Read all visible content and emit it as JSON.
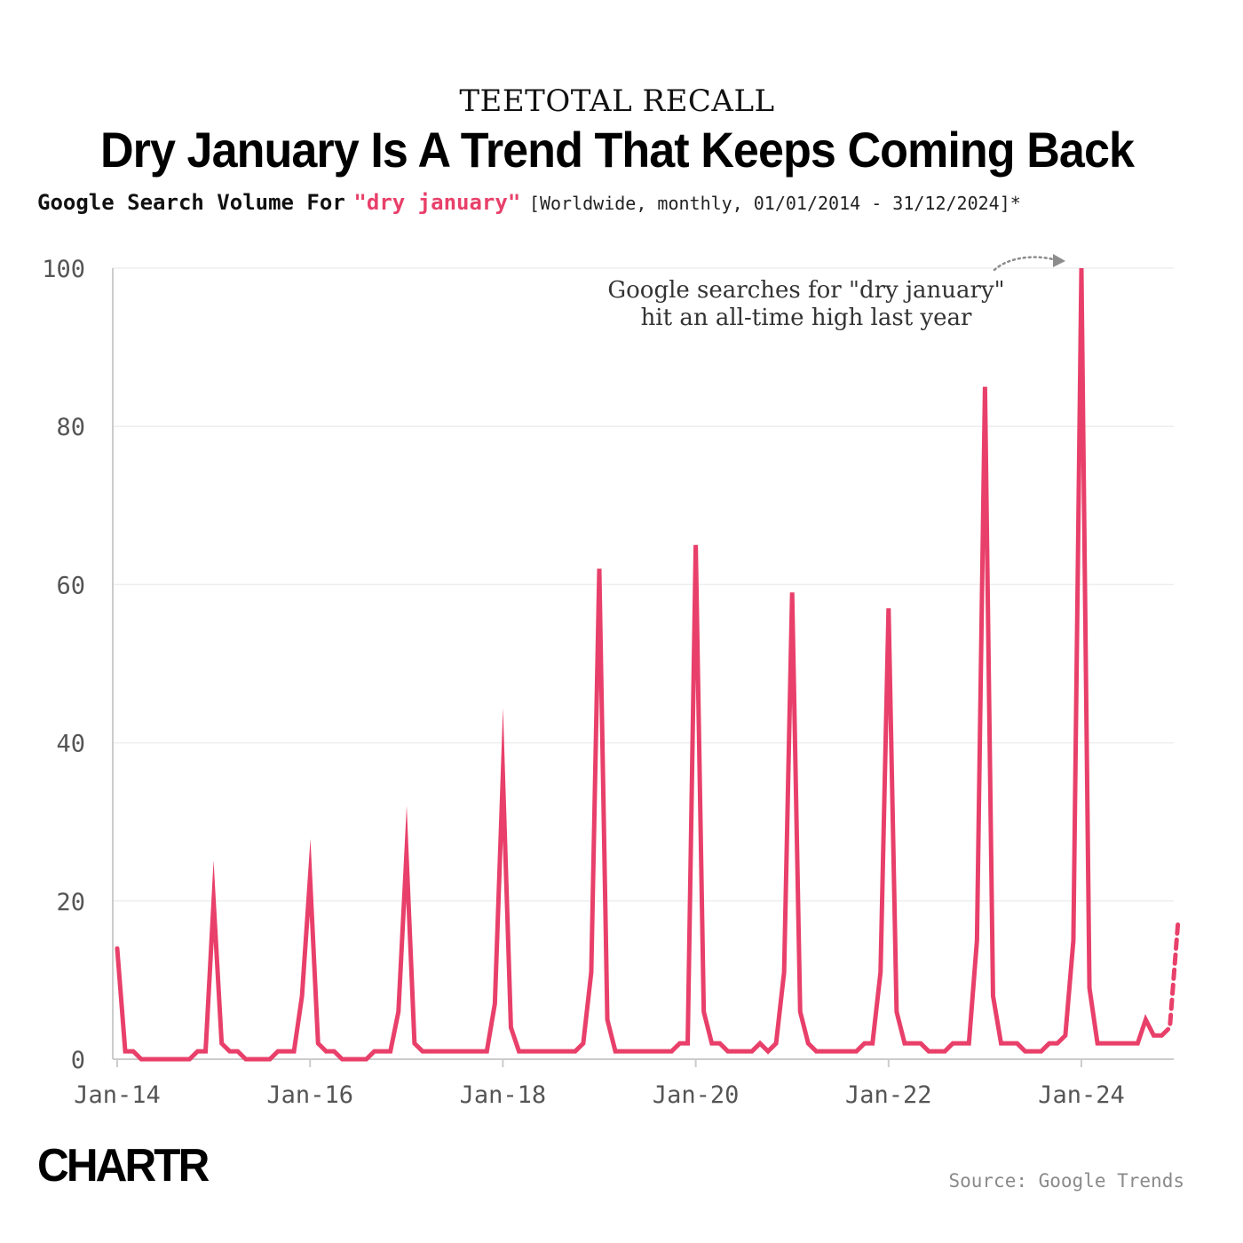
{
  "header": {
    "kicker": "TEETOTAL RECALL",
    "title": "Dry January Is A Trend That Keeps Coming Back",
    "subtitle_main": "Google Search Volume For",
    "subtitle_term": "\"dry january\"",
    "subtitle_params": "[Worldwide, monthly, 01/01/2014 - 31/12/2024]*"
  },
  "annotation": {
    "line1": "Google searches for \"dry january\"",
    "line2": "hit an all-time high last year"
  },
  "footer": {
    "logo": "CHARTR",
    "source": "Source: Google Trends"
  },
  "colors": {
    "line": "#e8406a",
    "grid": "#eeeeee",
    "axis": "#cccccc",
    "tick_text": "#555555",
    "annotation_arrow": "#8c8c8c"
  },
  "chart_data": {
    "type": "line",
    "x_start": "2014-01",
    "x_end": "2025-01",
    "x_interval": "monthly",
    "xticks": [
      "Jan-14",
      "Jan-16",
      "Jan-18",
      "Jan-20",
      "Jan-22",
      "Jan-24"
    ],
    "yticks": [
      0,
      20,
      40,
      60,
      80,
      100
    ],
    "ylim": [
      0,
      100
    ],
    "grid": "horizontal",
    "series": [
      {
        "values": [
          14,
          1,
          1,
          0,
          0,
          0,
          0,
          0,
          0,
          0,
          1,
          1,
          20,
          2,
          1,
          1,
          0,
          0,
          0,
          0,
          1,
          1,
          1,
          8,
          23,
          2,
          1,
          1,
          0,
          0,
          0,
          0,
          1,
          1,
          1,
          6,
          26,
          2,
          1,
          1,
          1,
          1,
          1,
          1,
          1,
          1,
          1,
          7,
          36,
          4,
          1,
          1,
          1,
          1,
          1,
          1,
          1,
          1,
          2,
          11,
          62,
          5,
          1,
          1,
          1,
          1,
          1,
          1,
          1,
          1,
          2,
          2,
          65,
          6,
          2,
          2,
          1,
          1,
          1,
          1,
          2,
          1,
          2,
          11,
          59,
          6,
          2,
          1,
          1,
          1,
          1,
          1,
          1,
          2,
          2,
          11,
          57,
          6,
          2,
          2,
          2,
          1,
          1,
          1,
          2,
          2,
          2,
          15,
          85,
          8,
          2,
          2,
          2,
          1,
          1,
          1,
          2,
          2,
          3,
          15,
          100,
          9,
          2,
          2,
          2,
          2,
          2,
          2,
          5,
          3,
          3,
          4,
          17
        ],
        "dashed_from_index": 131
      }
    ]
  }
}
